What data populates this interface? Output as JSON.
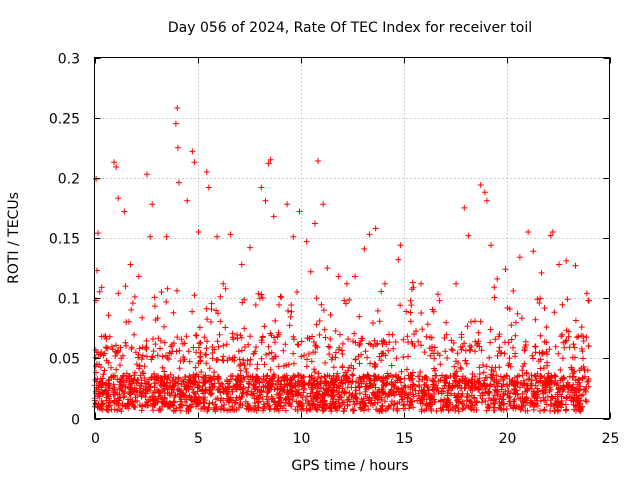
{
  "chart_data": {
    "type": "scatter",
    "title": "Day 056 of 2024, Rate Of TEC Index for receiver toil",
    "xlabel": "GPS time / hours",
    "ylabel": "ROTI / TECUs",
    "xlim": [
      0,
      25
    ],
    "ylim": [
      0,
      0.3
    ],
    "xticks": [
      0,
      5,
      10,
      15,
      20,
      25
    ],
    "xtick_labels": [
      "0",
      "5",
      "10",
      "15",
      "20",
      "25"
    ],
    "yticks": [
      0,
      0.05,
      0.1,
      0.15,
      0.2,
      0.25,
      0.3
    ],
    "ytick_labels": [
      "0",
      "0.05",
      "0.1",
      "0.15",
      "0.2",
      "0.25",
      "0.3"
    ],
    "grid": true,
    "marker": "plus",
    "color": "#ff0000",
    "data_range_hours": [
      0,
      24
    ],
    "series": [
      {
        "name": "ROTI",
        "points": [
          [
            0.08,
            0.199
          ],
          [
            0.12,
            0.123
          ],
          [
            0.17,
            0.154
          ],
          [
            0.35,
            0.109
          ],
          [
            0.95,
            0.213
          ],
          [
            1.05,
            0.209
          ],
          [
            1.15,
            0.183
          ],
          [
            1.45,
            0.172
          ],
          [
            1.75,
            0.128
          ],
          [
            2.15,
            0.118
          ],
          [
            2.55,
            0.203
          ],
          [
            2.7,
            0.151
          ],
          [
            2.8,
            0.178
          ],
          [
            3.25,
            0.105
          ],
          [
            3.5,
            0.151
          ],
          [
            3.95,
            0.245
          ],
          [
            4.02,
            0.258
          ],
          [
            4.05,
            0.225
          ],
          [
            4.1,
            0.196
          ],
          [
            4.5,
            0.181
          ],
          [
            4.75,
            0.222
          ],
          [
            4.85,
            0.213
          ],
          [
            5.05,
            0.155
          ],
          [
            5.45,
            0.205
          ],
          [
            5.55,
            0.192
          ],
          [
            5.95,
            0.151
          ],
          [
            6.25,
            0.112
          ],
          [
            6.6,
            0.153
          ],
          [
            7.15,
            0.128
          ],
          [
            7.55,
            0.142
          ],
          [
            8.1,
            0.192
          ],
          [
            8.3,
            0.181
          ],
          [
            8.45,
            0.212
          ],
          [
            8.55,
            0.215
          ],
          [
            8.7,
            0.168
          ],
          [
            9.35,
            0.178
          ],
          [
            9.65,
            0.151
          ],
          [
            9.95,
            0.172
          ],
          [
            10.3,
            0.147
          ],
          [
            10.5,
            0.122
          ],
          [
            10.7,
            0.162
          ],
          [
            10.85,
            0.214
          ],
          [
            11.1,
            0.178
          ],
          [
            11.3,
            0.125
          ],
          [
            11.85,
            0.118
          ],
          [
            12.25,
            0.112
          ],
          [
            12.65,
            0.118
          ],
          [
            13.1,
            0.141
          ],
          [
            13.35,
            0.153
          ],
          [
            13.65,
            0.158
          ],
          [
            14.1,
            0.112
          ],
          [
            14.75,
            0.132
          ],
          [
            14.85,
            0.144
          ],
          [
            15.45,
            0.113
          ],
          [
            15.85,
            0.112
          ],
          [
            16.75,
            0.098
          ],
          [
            17.55,
            0.112
          ],
          [
            17.95,
            0.175
          ],
          [
            18.15,
            0.152
          ],
          [
            18.75,
            0.194
          ],
          [
            18.95,
            0.188
          ],
          [
            19.05,
            0.181
          ],
          [
            19.25,
            0.144
          ],
          [
            19.55,
            0.116
          ],
          [
            19.95,
            0.124
          ],
          [
            20.65,
            0.134
          ],
          [
            21.05,
            0.155
          ],
          [
            21.3,
            0.139
          ],
          [
            21.7,
            0.121
          ],
          [
            22.15,
            0.152
          ],
          [
            22.25,
            0.155
          ],
          [
            22.55,
            0.128
          ],
          [
            22.9,
            0.131
          ],
          [
            23.35,
            0.127
          ],
          [
            23.9,
            0.104
          ],
          [
            24.0,
            0.098
          ]
        ]
      }
    ]
  }
}
